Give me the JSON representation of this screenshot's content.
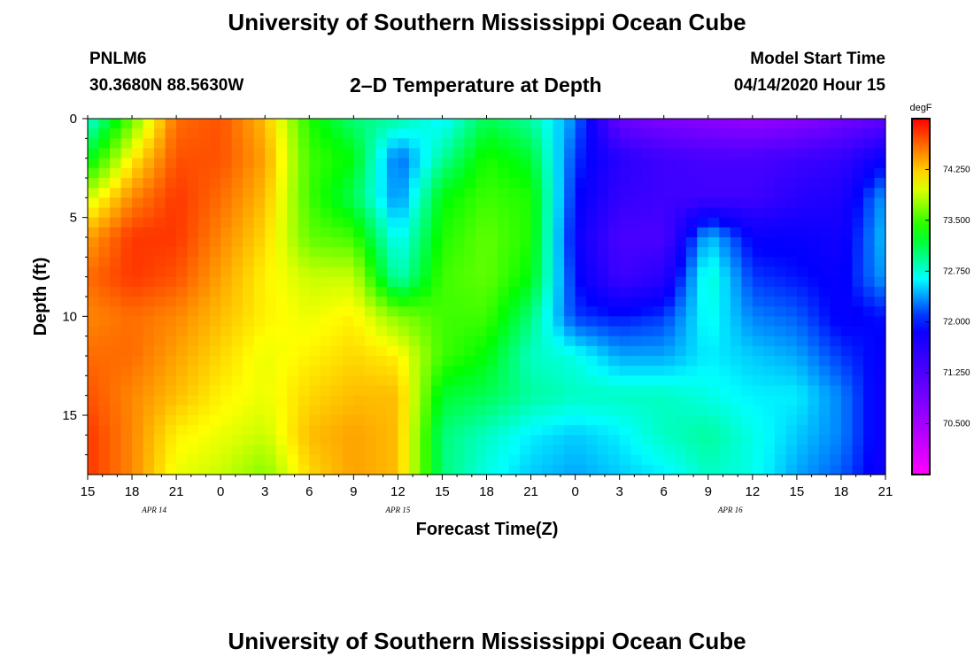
{
  "page": {
    "title_top": "University of Southern Mississippi Ocean Cube",
    "title_bottom": "University of Southern Mississippi Ocean Cube",
    "station": "PNLM6",
    "coords": "30.3680N 88.5630W",
    "plot_title": "2–D Temperature at Depth",
    "model_start_label": "Model Start Time",
    "model_start_value": "04/14/2020 Hour 15"
  },
  "chart_data": {
    "type": "heatmap",
    "title": "2–D Temperature at Depth",
    "xlabel": "Forecast Time(Z)",
    "ylabel": "Depth (ft)",
    "x_ticks": [
      "15",
      "18",
      "21",
      "0",
      "3",
      "6",
      "9",
      "12",
      "15",
      "18",
      "21",
      "0",
      "3",
      "6",
      "9",
      "12",
      "15",
      "18",
      "21"
    ],
    "x_hours_from_start": [
      0,
      3,
      6,
      9,
      12,
      15,
      18,
      21,
      24,
      27,
      30,
      33,
      36,
      39,
      42,
      45,
      48,
      51,
      54
    ],
    "date_labels": [
      {
        "label": "APR 14",
        "at_hour": 4.5
      },
      {
        "label": "APR 15",
        "at_hour": 21
      },
      {
        "label": "APR 16",
        "at_hour": 43.5
      }
    ],
    "y_ticks": [
      0,
      5,
      10,
      15
    ],
    "ylim": [
      18,
      0
    ],
    "depths_ft": [
      0,
      2,
      4,
      6,
      8,
      10,
      12,
      14,
      16,
      18
    ],
    "times_hours": [
      0,
      3,
      6,
      9,
      12,
      15,
      18,
      21,
      24,
      27,
      30,
      33,
      36,
      39,
      42,
      45,
      48,
      51,
      54
    ],
    "temperature_degF": [
      [
        72.7,
        73.6,
        74.6,
        74.7,
        74.3,
        73.4,
        73.0,
        72.9,
        72.6,
        73.1,
        72.9,
        72.3,
        71.0,
        70.8,
        70.7,
        70.6,
        70.7,
        70.9,
        71.1
      ],
      [
        73.2,
        74.1,
        74.7,
        74.7,
        74.4,
        73.5,
        73.3,
        72.2,
        72.9,
        73.4,
        73.2,
        72.1,
        71.6,
        71.4,
        71.3,
        71.3,
        71.4,
        71.5,
        71.9
      ],
      [
        73.9,
        74.5,
        74.8,
        74.6,
        74.3,
        73.5,
        73.1,
        72.3,
        73.3,
        73.5,
        73.4,
        72.0,
        71.5,
        71.4,
        71.4,
        71.4,
        71.6,
        71.7,
        72.4
      ],
      [
        74.4,
        74.8,
        74.8,
        74.5,
        74.2,
        73.6,
        73.5,
        72.6,
        73.4,
        73.6,
        73.4,
        71.9,
        71.3,
        71.3,
        72.5,
        71.9,
        71.9,
        71.8,
        72.5
      ],
      [
        74.6,
        74.8,
        74.7,
        74.4,
        74.1,
        73.9,
        73.9,
        72.8,
        73.5,
        73.6,
        73.3,
        72.0,
        71.4,
        71.6,
        72.8,
        72.1,
        72.0,
        71.9,
        72.4
      ],
      [
        74.5,
        74.6,
        74.5,
        74.3,
        74.1,
        74.0,
        74.1,
        73.7,
        73.5,
        73.5,
        73.0,
        72.1,
        72.0,
        72.1,
        72.7,
        72.3,
        72.2,
        71.9,
        72.0
      ],
      [
        74.6,
        74.6,
        74.4,
        74.2,
        74.0,
        74.1,
        74.2,
        74.1,
        73.5,
        73.3,
        72.8,
        72.7,
        72.4,
        72.4,
        72.6,
        72.5,
        72.4,
        72.1,
        71.9
      ],
      [
        74.7,
        74.5,
        74.3,
        74.1,
        74.0,
        74.2,
        74.3,
        74.3,
        73.2,
        73.1,
        72.9,
        72.8,
        72.8,
        72.8,
        72.7,
        72.6,
        72.6,
        72.3,
        71.8
      ],
      [
        74.8,
        74.5,
        74.1,
        74.0,
        73.9,
        74.3,
        74.4,
        74.3,
        73.0,
        72.8,
        72.6,
        72.5,
        72.6,
        72.8,
        72.9,
        72.7,
        72.5,
        72.3,
        71.8
      ],
      [
        74.8,
        74.5,
        74.0,
        73.9,
        73.7,
        74.2,
        74.4,
        74.3,
        73.0,
        72.7,
        72.5,
        72.4,
        72.5,
        72.6,
        72.8,
        72.7,
        72.4,
        72.2,
        71.8
      ]
    ],
    "colorbar": {
      "unit": "degF",
      "min": 69.75,
      "max": 75.0,
      "ticks": [
        "74.250",
        "73.500",
        "72.750",
        "72.000",
        "71.250",
        "70.500"
      ]
    }
  }
}
